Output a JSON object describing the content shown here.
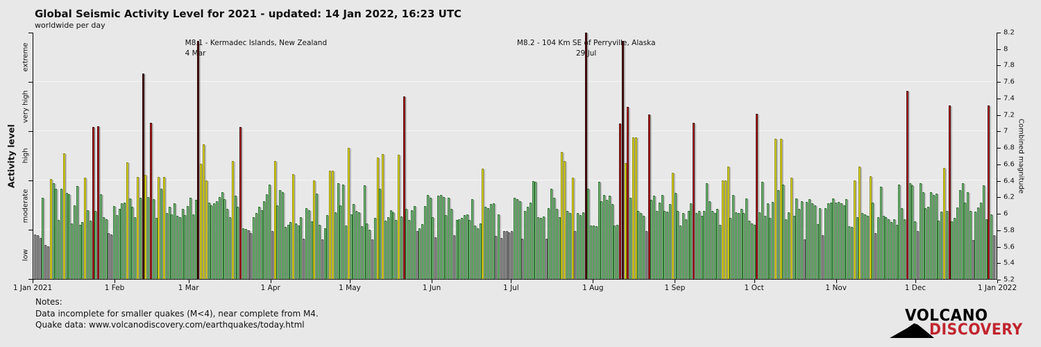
{
  "chart_data": {
    "type": "bar",
    "title": "Global Seismic Activity Level for 2021 - updated: 14 Jan 2022, 16:23 UTC",
    "subtitle": "worldwide per day",
    "year": "2021",
    "y_left": {
      "label": "Activity level",
      "bands": [
        {
          "label": "low",
          "max": 5.8,
          "fill": "#ababab",
          "border": "#4a4a4a"
        },
        {
          "label": "moderate",
          "max": 6.4,
          "fill": "#90d493",
          "border": "#2b6b2e"
        },
        {
          "label": "high",
          "max": 7.0,
          "fill": "#f2ee12",
          "border": "#8a850c"
        },
        {
          "label": "very high",
          "max": 7.6,
          "fill": "#dd1c1c",
          "border": "#420808"
        },
        {
          "label": "extreme",
          "max": 8.2,
          "fill": "#5a0e10",
          "border": "#260304"
        }
      ]
    },
    "y_right": {
      "label": "Combined magnitude",
      "min": 5.2,
      "max": 8.2,
      "step": 0.2
    },
    "x_axis": {
      "ticks": [
        {
          "label": "1 Jan 2021",
          "day": 0
        },
        {
          "label": "1 Feb",
          "day": 31
        },
        {
          "label": "1 Mar",
          "day": 59
        },
        {
          "label": "1 Apr",
          "day": 90
        },
        {
          "label": "1 May",
          "day": 120
        },
        {
          "label": "1 Jun",
          "day": 151
        },
        {
          "label": "1 Jul",
          "day": 181
        },
        {
          "label": "1 Aug",
          "day": 212
        },
        {
          "label": "1 Sep",
          "day": 243
        },
        {
          "label": "1 Oct",
          "day": 273
        },
        {
          "label": "1 Nov",
          "day": 304
        },
        {
          "label": "1 Dec",
          "day": 334
        },
        {
          "label": "1 Jan 2022",
          "day": 365
        }
      ]
    },
    "annotations": [
      {
        "id": "kermadec-m81",
        "line1": "M8.1 - Kermadec Islands, New Zealand",
        "line2": "4 Mar",
        "day": 62,
        "align": "left"
      },
      {
        "id": "perryville-m82",
        "line1": "M8.2 - 104 Km SE of Perryville, Alaska",
        "line2": "29 Jul",
        "day": 209,
        "align": "center"
      }
    ],
    "values": [
      5.74,
      5.73,
      5.7,
      6.19,
      5.61,
      5.6,
      6.42,
      6.37,
      6.3,
      5.92,
      6.3,
      6.73,
      6.25,
      6.23,
      5.88,
      6.1,
      6.33,
      5.86,
      5.89,
      6.43,
      6.04,
      5.91,
      7.05,
      6.03,
      7.06,
      6.23,
      5.95,
      5.93,
      5.76,
      5.74,
      6.09,
      5.98,
      6.05,
      6.12,
      6.13,
      6.62,
      6.18,
      6.08,
      5.95,
      6.44,
      6.19,
      7.7,
      6.47,
      6.2,
      7.1,
      6.17,
      5.94,
      6.44,
      6.3,
      6.44,
      6.0,
      6.08,
      5.99,
      6.12,
      5.97,
      5.95,
      6.05,
      5.98,
      6.09,
      6.19,
      5.99,
      6.16,
      8.1,
      6.6,
      6.84,
      6.4,
      6.13,
      6.1,
      6.12,
      6.15,
      6.2,
      6.26,
      6.17,
      6.05,
      5.95,
      6.64,
      6.21,
      6.08,
      7.05,
      5.82,
      5.81,
      5.79,
      5.76,
      5.95,
      6.0,
      6.08,
      6.04,
      6.15,
      6.23,
      6.35,
      5.78,
      6.64,
      6.1,
      6.28,
      6.26,
      5.83,
      5.86,
      5.89,
      6.48,
      5.88,
      5.85,
      5.95,
      5.69,
      6.06,
      6.04,
      5.9,
      6.4,
      6.24,
      5.86,
      5.68,
      5.82,
      5.98,
      6.52,
      6.52,
      6.01,
      6.37,
      6.1,
      6.35,
      5.85,
      6.8,
      5.99,
      6.11,
      6.03,
      6.01,
      5.84,
      6.34,
      5.88,
      5.8,
      5.68,
      5.94,
      6.68,
      6.3,
      6.72,
      5.91,
      5.95,
      6.04,
      6.01,
      5.92,
      6.71,
      5.96,
      7.42,
      6.05,
      5.92,
      6.04,
      6.09,
      5.78,
      5.82,
      5.87,
      6.09,
      6.22,
      6.19,
      5.95,
      5.71,
      6.21,
      6.22,
      6.2,
      5.98,
      6.19,
      6.05,
      5.73,
      5.92,
      5.93,
      5.94,
      5.98,
      5.99,
      5.92,
      6.17,
      5.85,
      5.82,
      5.88,
      6.54,
      6.08,
      6.06,
      6.11,
      6.12,
      5.72,
      5.99,
      5.7,
      5.78,
      5.78,
      5.77,
      5.78,
      6.19,
      6.17,
      6.15,
      5.69,
      6.03,
      6.08,
      6.13,
      6.39,
      6.38,
      5.95,
      5.94,
      5.96,
      5.69,
      6.06,
      6.3,
      6.19,
      6.05,
      5.95,
      6.75,
      6.64,
      6.03,
      6.0,
      6.43,
      5.78,
      6.0,
      5.98,
      6.01,
      8.2,
      6.3,
      5.85,
      5.85,
      5.84,
      6.38,
      6.15,
      6.22,
      6.16,
      6.21,
      6.11,
      5.85,
      5.86,
      7.09,
      8.1,
      6.61,
      7.3,
      6.19,
      6.92,
      6.92,
      6.03,
      6.0,
      5.97,
      5.78,
      7.2,
      6.16,
      6.21,
      6.03,
      6.13,
      6.22,
      6.03,
      6.02,
      6.11,
      6.49,
      6.25,
      6.03,
      5.85,
      6.0,
      5.93,
      6.03,
      6.12,
      7.1,
      6.0,
      6.03,
      5.97,
      6.03,
      6.37,
      6.15,
      6.03,
      6.0,
      6.05,
      5.86,
      6.4,
      6.4,
      6.57,
      5.94,
      6.22,
      6.01,
      6.0,
      6.05,
      6.0,
      6.18,
      5.91,
      5.88,
      5.86,
      7.21,
      6.01,
      6.38,
      5.97,
      6.12,
      5.94,
      6.14,
      6.91,
      6.28,
      6.91,
      6.35,
      5.93,
      6.01,
      6.43,
      5.97,
      6.18,
      6.05,
      6.15,
      5.68,
      6.14,
      6.17,
      6.12,
      6.1,
      5.87,
      6.06,
      5.73,
      6.06,
      6.12,
      6.13,
      6.18,
      6.13,
      6.14,
      6.12,
      6.1,
      6.17,
      5.84,
      5.83,
      6.4,
      5.95,
      6.57,
      6.0,
      5.99,
      5.97,
      6.45,
      6.13,
      5.76,
      5.95,
      6.32,
      5.97,
      5.95,
      5.93,
      5.89,
      5.93,
      5.86,
      6.35,
      6.06,
      5.93,
      7.49,
      6.37,
      6.34,
      5.9,
      5.78,
      6.37,
      6.26,
      6.06,
      6.08,
      6.26,
      6.22,
      6.24,
      5.91,
      6.02,
      6.55,
      6.03,
      7.31,
      5.9,
      5.94,
      6.07,
      6.28,
      6.37,
      6.13,
      6.26,
      6.03,
      5.67,
      6.02,
      6.07,
      6.13,
      6.34,
      5.93,
      7.31,
      5.99,
      5.73
    ]
  },
  "notes": {
    "heading": "Notes:",
    "line1": "Data incomplete for smaller quakes (M<4), near complete from M4.",
    "line2": "Quake data: www.volcanodiscovery.com/earthquakes/today.html"
  },
  "logo": {
    "line1": "VOLCANO",
    "line2": "DISCOVERY",
    "accent": "#c2252f"
  }
}
